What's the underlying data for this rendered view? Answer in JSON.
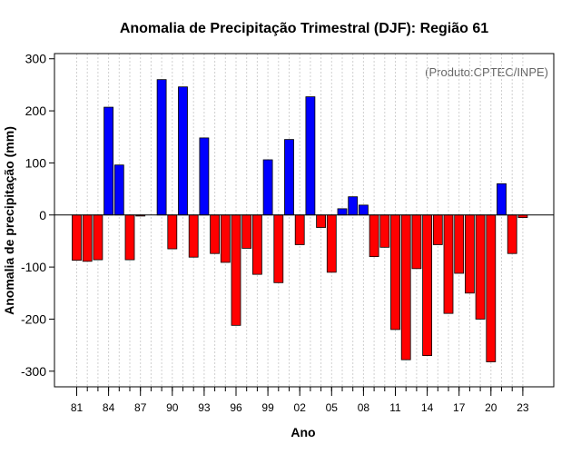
{
  "chart_data": {
    "type": "bar",
    "title": "Anomalia de Precipitação Trimestral (DJF): Região 61",
    "xlabel": "Ano",
    "ylabel": "Anomalia de precipitação (mm)",
    "annotation": "(Produto:CPTEC/INPE)",
    "ylim": [
      -330,
      310
    ],
    "yticks": [
      300,
      200,
      100,
      0,
      -100,
      -200,
      -300
    ],
    "ytick_labels": [
      "300",
      "200",
      "100",
      "0",
      "-100",
      "-200",
      "-300"
    ],
    "xtick_labels": [
      "81",
      "84",
      "87",
      "90",
      "93",
      "96",
      "99",
      "02",
      "05",
      "08",
      "11",
      "14",
      "17",
      "20",
      "23"
    ],
    "first_year": 1981,
    "grid": true,
    "positive_color": "#0000ff",
    "negative_color": "#ff0000",
    "categories": [
      "1981",
      "1982",
      "1983",
      "1984",
      "1985",
      "1986",
      "1987",
      "1988",
      "1989",
      "1990",
      "1991",
      "1992",
      "1993",
      "1994",
      "1995",
      "1996",
      "1997",
      "1998",
      "1999",
      "2000",
      "2001",
      "2002",
      "2003",
      "2004",
      "2005",
      "2006",
      "2007",
      "2008",
      "2009",
      "2010",
      "2011",
      "2012",
      "2013",
      "2014",
      "2015",
      "2016",
      "2017",
      "2018",
      "2019",
      "2020",
      "2021",
      "2022",
      "2023"
    ],
    "values": [
      -87,
      -89,
      -86,
      207,
      96,
      -86,
      -2,
      0,
      260,
      -65,
      246,
      -81,
      148,
      -74,
      -91,
      -212,
      -64,
      -114,
      106,
      -130,
      145,
      -57,
      227,
      -24,
      -110,
      12,
      35,
      19,
      -80,
      -62,
      -220,
      -278,
      -103,
      -270,
      -57,
      -189,
      -112,
      -150,
      -200,
      -282,
      60,
      -74,
      -5
    ]
  }
}
